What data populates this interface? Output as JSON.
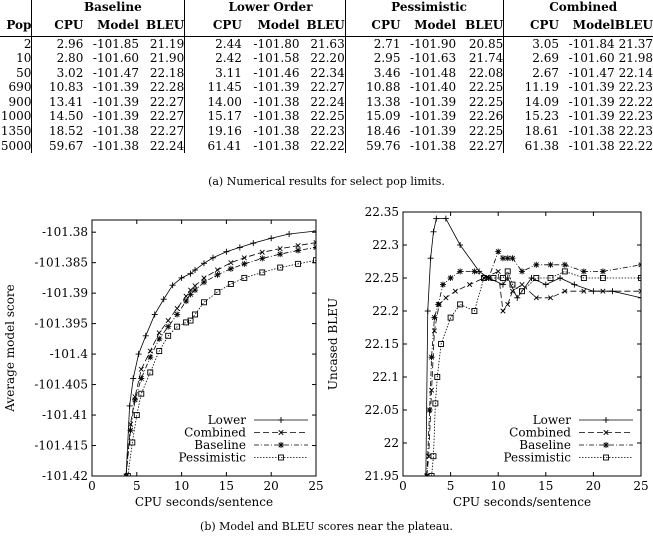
{
  "table": {
    "col_pop": "Pop",
    "groups": [
      "Baseline",
      "Lower Order",
      "Pessimistic",
      "Combined"
    ],
    "sub_headers": [
      "CPU",
      "Model",
      "BLEU"
    ],
    "rows": [
      {
        "pop": "2",
        "cells": [
          "2.96",
          "-101.85",
          "21.19",
          "2.44",
          "-101.80",
          "21.63",
          "2.71",
          "-101.90",
          "20.85",
          "3.05",
          "-101.84",
          "21.37"
        ]
      },
      {
        "pop": "10",
        "cells": [
          "2.80",
          "-101.60",
          "21.90",
          "2.42",
          "-101.58",
          "22.20",
          "2.95",
          "-101.63",
          "21.74",
          "2.69",
          "-101.60",
          "21.98"
        ]
      },
      {
        "pop": "50",
        "cells": [
          "3.02",
          "-101.47",
          "22.18",
          "3.11",
          "-101.46",
          "22.34",
          "3.46",
          "-101.48",
          "22.08",
          "2.67",
          "-101.47",
          "22.14"
        ]
      },
      {
        "pop": "690",
        "cells": [
          "10.83",
          "-101.39",
          "22.28",
          "11.45",
          "-101.39",
          "22.27",
          "10.88",
          "-101.40",
          "22.25",
          "11.19",
          "-101.39",
          "22.23"
        ]
      },
      {
        "pop": "900",
        "cells": [
          "13.41",
          "-101.39",
          "22.27",
          "14.00",
          "-101.38",
          "22.24",
          "13.38",
          "-101.39",
          "22.25",
          "14.09",
          "-101.39",
          "22.22"
        ]
      },
      {
        "pop": "1000",
        "cells": [
          "14.50",
          "-101.39",
          "22.27",
          "15.17",
          "-101.38",
          "22.25",
          "15.09",
          "-101.39",
          "22.26",
          "15.23",
          "-101.39",
          "22.23"
        ]
      },
      {
        "pop": "1350",
        "cells": [
          "18.52",
          "-101.38",
          "22.27",
          "19.16",
          "-101.38",
          "22.23",
          "18.46",
          "-101.39",
          "22.25",
          "18.61",
          "-101.38",
          "22.23"
        ]
      },
      {
        "pop": "5000",
        "cells": [
          "59.67",
          "-101.38",
          "22.24",
          "61.41",
          "-101.38",
          "22.22",
          "59.76",
          "-101.38",
          "22.27",
          "61.38",
          "-101.38",
          "22.22"
        ]
      }
    ]
  },
  "caption_a": "(a) Numerical results for select pop limits.",
  "caption_b": "(b) Model and BLEU scores near the plateau.",
  "chart_data": [
    {
      "type": "line",
      "xlabel": "CPU seconds/sentence",
      "ylabel": "Average model score",
      "xlim": [
        0,
        25
      ],
      "ylim": [
        -101.42,
        -101.378
      ],
      "xticks": [
        0,
        5,
        10,
        15,
        20,
        25
      ],
      "yticks": [
        -101.42,
        -101.415,
        -101.41,
        -101.405,
        -101.4,
        -101.395,
        -101.39,
        -101.385,
        -101.38
      ],
      "ytick_labels": [
        "-101.42",
        "-101.415",
        "-101.41",
        "-101.405",
        "-101.4",
        "-101.395",
        "-101.39",
        "-101.385",
        "-101.38"
      ],
      "legend_position": "bottom-right",
      "series": [
        {
          "name": "Lower",
          "marker": "plus",
          "dash": "",
          "x": [
            3.8,
            4.2,
            4.6,
            5.2,
            6.0,
            7.0,
            8.0,
            9.0,
            10.0,
            11.0,
            11.5,
            12.5,
            13.5,
            15.0,
            16.5,
            18.0,
            20.0,
            22.0,
            25.0
          ],
          "y": [
            -101.42,
            -101.4085,
            -101.404,
            -101.4,
            -101.397,
            -101.3935,
            -101.391,
            -101.3887,
            -101.3875,
            -101.3868,
            -101.3862,
            -101.3851,
            -101.3842,
            -101.3832,
            -101.3825,
            -101.3818,
            -101.381,
            -101.3803,
            -101.3798
          ]
        },
        {
          "name": "Combined",
          "marker": "cross",
          "dash": "6,3",
          "x": [
            3.8,
            4.3,
            4.8,
            5.5,
            6.5,
            7.5,
            8.5,
            9.5,
            10.5,
            11.0,
            11.5,
            12.5,
            14.0,
            15.5,
            17.0,
            19.0,
            21.0,
            23.0,
            25.0
          ],
          "y": [
            -101.42,
            -101.4115,
            -101.407,
            -101.4025,
            -101.3995,
            -101.3965,
            -101.3945,
            -101.3925,
            -101.3905,
            -101.3895,
            -101.3888,
            -101.3875,
            -101.3862,
            -101.385,
            -101.3842,
            -101.3833,
            -101.3827,
            -101.3822,
            -101.3817
          ]
        },
        {
          "name": "Baseline",
          "marker": "star",
          "dash": "5,2,1,2",
          "x": [
            3.8,
            4.3,
            4.8,
            5.5,
            6.5,
            7.5,
            8.5,
            9.5,
            10.5,
            11.0,
            11.5,
            12.5,
            14.0,
            15.5,
            17.0,
            19.0,
            21.0,
            23.0,
            25.0
          ],
          "y": [
            -101.42,
            -101.4125,
            -101.4075,
            -101.404,
            -101.4005,
            -101.3975,
            -101.3955,
            -101.3935,
            -101.3913,
            -101.3902,
            -101.3895,
            -101.3882,
            -101.387,
            -101.386,
            -101.3852,
            -101.3843,
            -101.3836,
            -101.383,
            -101.3825
          ]
        },
        {
          "name": "Pessimistic",
          "marker": "square",
          "dash": "1.5,1.5",
          "x": [
            4.0,
            4.5,
            5.0,
            5.5,
            6.5,
            7.5,
            8.5,
            9.5,
            10.5,
            11.0,
            11.5,
            12.5,
            14.0,
            15.5,
            17.0,
            19.0,
            21.0,
            23.0,
            25.0
          ],
          "y": [
            -101.42,
            -101.4145,
            -101.41,
            -101.4065,
            -101.403,
            -101.3995,
            -101.397,
            -101.3955,
            -101.3948,
            -101.3945,
            -101.3935,
            -101.3915,
            -101.3898,
            -101.3885,
            -101.3875,
            -101.3866,
            -101.3858,
            -101.3852,
            -101.3846
          ]
        }
      ]
    },
    {
      "type": "line",
      "xlabel": "CPU seconds/sentence",
      "ylabel": "Uncased BLEU",
      "xlim": [
        0,
        25
      ],
      "ylim": [
        21.95,
        22.35
      ],
      "xticks": [
        0,
        5,
        10,
        15,
        20,
        25
      ],
      "yticks": [
        21.95,
        22.0,
        22.05,
        22.1,
        22.15,
        22.2,
        22.25,
        22.3,
        22.35
      ],
      "ytick_labels": [
        "21.95",
        "22",
        "22.05",
        "22.1",
        "22.15",
        "22.2",
        "22.25",
        "22.3",
        "22.35"
      ],
      "legend_position": "bottom-right",
      "series": [
        {
          "name": "Lower",
          "marker": "plus",
          "dash": "",
          "x": [
            2.4,
            2.6,
            2.9,
            3.2,
            3.5,
            4.5,
            6.0,
            8.0,
            9.0,
            10.5,
            11.0,
            12.0,
            13.5,
            15.0,
            16.5,
            18.0,
            20.0,
            22.0,
            25.0
          ],
          "y": [
            21.95,
            22.2,
            22.28,
            22.32,
            22.34,
            22.34,
            22.3,
            22.26,
            22.25,
            22.24,
            22.25,
            22.22,
            22.25,
            22.24,
            22.25,
            22.24,
            22.23,
            22.23,
            22.22
          ]
        },
        {
          "name": "Combined",
          "marker": "cross",
          "dash": "6,3",
          "x": [
            2.5,
            2.7,
            3.0,
            3.3,
            3.8,
            4.5,
            5.5,
            7.0,
            8.5,
            10.0,
            10.5,
            11.0,
            11.5,
            12.5,
            14.0,
            15.5,
            17.0,
            19.0,
            21.0,
            25.0
          ],
          "y": [
            21.95,
            21.98,
            22.08,
            22.17,
            22.21,
            22.22,
            22.23,
            22.24,
            22.25,
            22.26,
            22.2,
            22.21,
            22.23,
            22.24,
            22.22,
            22.22,
            22.23,
            22.23,
            22.23,
            22.23
          ]
        },
        {
          "name": "Baseline",
          "marker": "star",
          "dash": "5,2,1,2",
          "x": [
            2.5,
            2.8,
            3.0,
            3.3,
            3.7,
            4.2,
            5.0,
            6.0,
            7.5,
            9.0,
            10.0,
            10.5,
            11.0,
            11.5,
            12.5,
            14.0,
            15.5,
            17.0,
            19.0,
            21.0,
            25.0
          ],
          "y": [
            21.95,
            22.05,
            22.13,
            22.19,
            22.21,
            22.24,
            22.25,
            22.26,
            22.26,
            22.25,
            22.29,
            22.28,
            22.28,
            22.28,
            22.26,
            22.27,
            22.27,
            22.27,
            22.26,
            22.26,
            22.27
          ]
        },
        {
          "name": "Pessimistic",
          "marker": "square",
          "dash": "1.5,1.5",
          "x": [
            3.0,
            3.2,
            3.4,
            3.6,
            4.0,
            5.0,
            6.0,
            7.5,
            8.5,
            9.5,
            10.5,
            11.0,
            11.5,
            12.5,
            14.0,
            15.5,
            17.0,
            19.0,
            21.0,
            25.0
          ],
          "y": [
            21.95,
            21.98,
            22.06,
            22.1,
            22.15,
            22.19,
            22.21,
            22.2,
            22.25,
            22.25,
            22.25,
            22.26,
            22.24,
            22.23,
            22.25,
            22.25,
            22.26,
            22.25,
            22.25,
            22.25
          ]
        }
      ]
    }
  ]
}
